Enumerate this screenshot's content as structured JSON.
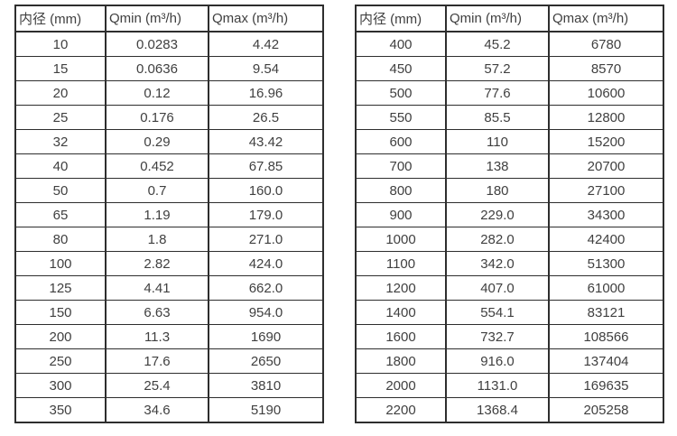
{
  "page": {
    "background": "#ffffff",
    "border_color": "#2e2e2e",
    "text_color": "#404040"
  },
  "tables": [
    {
      "name": "flow-range-table-small-diameters",
      "headers": [
        "内径 (mm)",
        "Qmin (m³/h)",
        "Qmax (m³/h)"
      ],
      "rows": [
        [
          "10",
          "0.0283",
          "4.42"
        ],
        [
          "15",
          "0.0636",
          "9.54"
        ],
        [
          "20",
          "0.12",
          "16.96"
        ],
        [
          "25",
          "0.176",
          "26.5"
        ],
        [
          "32",
          "0.29",
          "43.42"
        ],
        [
          "40",
          "0.452",
          "67.85"
        ],
        [
          "50",
          "0.7",
          "160.0"
        ],
        [
          "65",
          "1.19",
          "179.0"
        ],
        [
          "80",
          "1.8",
          "271.0"
        ],
        [
          "100",
          "2.82",
          "424.0"
        ],
        [
          "125",
          "4.41",
          "662.0"
        ],
        [
          "150",
          "6.63",
          "954.0"
        ],
        [
          "200",
          "11.3",
          "1690"
        ],
        [
          "250",
          "17.6",
          "2650"
        ],
        [
          "300",
          "25.4",
          "3810"
        ],
        [
          "350",
          "34.6",
          "5190"
        ]
      ]
    },
    {
      "name": "flow-range-table-large-diameters",
      "headers": [
        "内径 (mm)",
        "Qmin (m³/h)",
        "Qmax (m³/h)"
      ],
      "rows": [
        [
          "400",
          "45.2",
          "6780"
        ],
        [
          "450",
          "57.2",
          "8570"
        ],
        [
          "500",
          "77.6",
          "10600"
        ],
        [
          "550",
          "85.5",
          "12800"
        ],
        [
          "600",
          "110",
          "15200"
        ],
        [
          "700",
          "138",
          "20700"
        ],
        [
          "800",
          "180",
          "27100"
        ],
        [
          "900",
          "229.0",
          "34300"
        ],
        [
          "1000",
          "282.0",
          "42400"
        ],
        [
          "1100",
          "342.0",
          "51300"
        ],
        [
          "1200",
          "407.0",
          "61000"
        ],
        [
          "1400",
          "554.1",
          "83121"
        ],
        [
          "1600",
          "732.7",
          "108566"
        ],
        [
          "1800",
          "916.0",
          "137404"
        ],
        [
          "2000",
          "1131.0",
          "169635"
        ],
        [
          "2200",
          "1368.4",
          "205258"
        ]
      ]
    }
  ]
}
